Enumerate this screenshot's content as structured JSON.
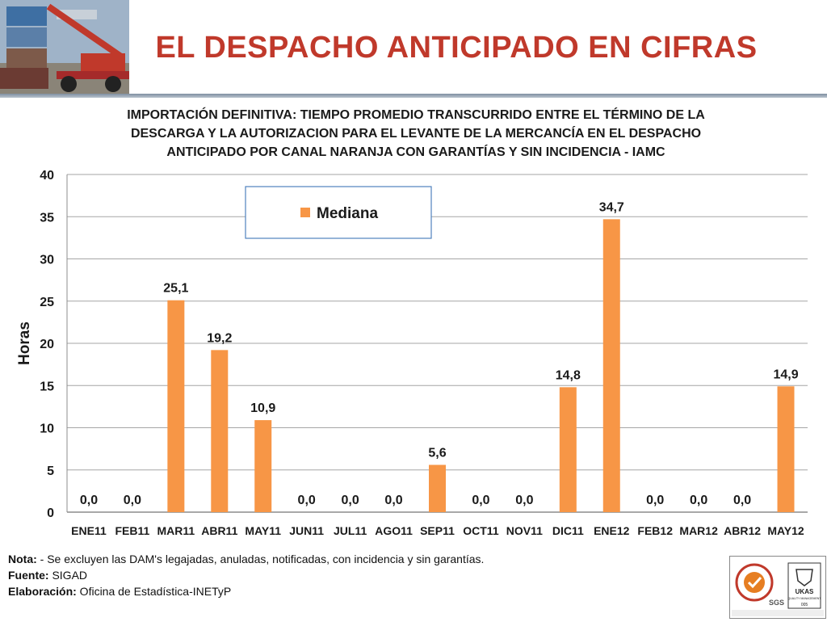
{
  "header": {
    "title": "EL DESPACHO ANTICIPADO EN CIFRAS"
  },
  "chart_data": {
    "type": "bar",
    "title_lines": [
      "IMPORTACIÓN DEFINITIVA: TIEMPO PROMEDIO TRANSCURRIDO ENTRE EL TÉRMINO DE LA",
      "DESCARGA Y LA AUTORIZACION PARA EL LEVANTE DE LA MERCANCÍA EN EL DESPACHO",
      "ANTICIPADO POR CANAL NARANJA CON GARANTÍAS Y SIN INCIDENCIA - IAMC"
    ],
    "ylabel": "Horas",
    "xlabel": "",
    "ylim": [
      0,
      40
    ],
    "yticks": [
      "0",
      "5",
      "10",
      "15",
      "20",
      "25",
      "30",
      "35",
      "40"
    ],
    "grid": true,
    "legend_placement": "top-left",
    "categories": [
      "ENE11",
      "FEB11",
      "MAR11",
      "ABR11",
      "MAY11",
      "JUN11",
      "JUL11",
      "AGO11",
      "SEP11",
      "OCT11",
      "NOV11",
      "DIC11",
      "ENE12",
      "FEB12",
      "MAR12",
      "ABR12",
      "MAY12"
    ],
    "series": [
      {
        "name": "Mediana",
        "color": "#f79646",
        "values": [
          0,
          0,
          25.1,
          19.2,
          10.9,
          0,
          0,
          0,
          5.6,
          0,
          0,
          14.8,
          34.7,
          0,
          0,
          0,
          14.9
        ],
        "labels": [
          "0,0",
          "0,0",
          "25,1",
          "19,2",
          "10,9",
          "0,0",
          "0,0",
          "0,0",
          "5,6",
          "0,0",
          "0,0",
          "14,8",
          "34,7",
          "0,0",
          "0,0",
          "0,0",
          "14,9"
        ]
      }
    ]
  },
  "footer": {
    "nota_label": "Nota:",
    "nota_text": " - Se excluyen las DAM's legajadas, anuladas, notificadas, con incidencia y sin garantías.",
    "fuente_label": "Fuente:",
    "fuente_text": " SIGAD",
    "elaboracion_label": "Elaboración:",
    "elaboracion_text": " Oficina de Estadística-INETyP"
  },
  "logos": {
    "sgs_text": "SGS",
    "ukas_text": "UKAS",
    "ukas_sub": "QUALITY MANAGEMENT",
    "ukas_code": "005"
  },
  "colors": {
    "title_red": "#c0392b",
    "bar_orange": "#f79646"
  }
}
